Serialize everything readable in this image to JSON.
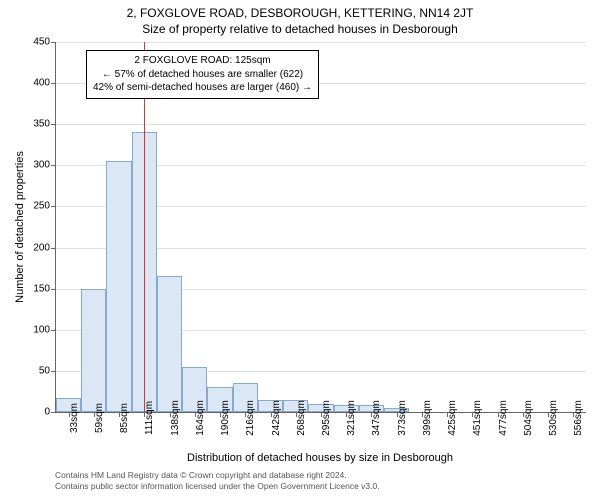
{
  "titles": {
    "main": "2, FOXGLOVE ROAD, DESBOROUGH, KETTERING, NN14 2JT",
    "sub": "Size of property relative to detached houses in Desborough"
  },
  "axes": {
    "y_label": "Number of detached properties",
    "x_label": "Distribution of detached houses by size in Desborough",
    "y_max": 450,
    "y_step": 50,
    "y_ticks": [
      0,
      50,
      100,
      150,
      200,
      250,
      300,
      350,
      400,
      450
    ]
  },
  "bars": {
    "categories": [
      "33sqm",
      "59sqm",
      "85sqm",
      "111sqm",
      "138sqm",
      "164sqm",
      "190sqm",
      "216sqm",
      "242sqm",
      "268sqm",
      "295sqm",
      "321sqm",
      "347sqm",
      "373sqm",
      "399sqm",
      "425sqm",
      "451sqm",
      "477sqm",
      "504sqm",
      "530sqm",
      "556sqm"
    ],
    "values": [
      17,
      150,
      305,
      340,
      165,
      55,
      30,
      35,
      15,
      15,
      10,
      8,
      8,
      5,
      0,
      0,
      0,
      0,
      0,
      0,
      0
    ],
    "fill": "#dbe7f5",
    "stroke": "#88a8cc",
    "width_ratio": 1.0
  },
  "marker": {
    "color": "#e03030",
    "position_index": 3.5
  },
  "annotation": {
    "line1": "2 FOXGLOVE ROAD: 125sqm",
    "line2": "← 57% of detached houses are smaller (622)",
    "line3": "42% of semi-detached houses are larger (460) →"
  },
  "footer": {
    "line1": "Contains HM Land Registry data © Crown copyright and database right 2024.",
    "line2": "Contains public sector information licensed under the Open Government Licence v3.0."
  },
  "styling": {
    "bg": "#ffffff",
    "grid": "#e0e0e0",
    "axis": "#666666",
    "text": "#000000",
    "footer_text": "#555555"
  }
}
